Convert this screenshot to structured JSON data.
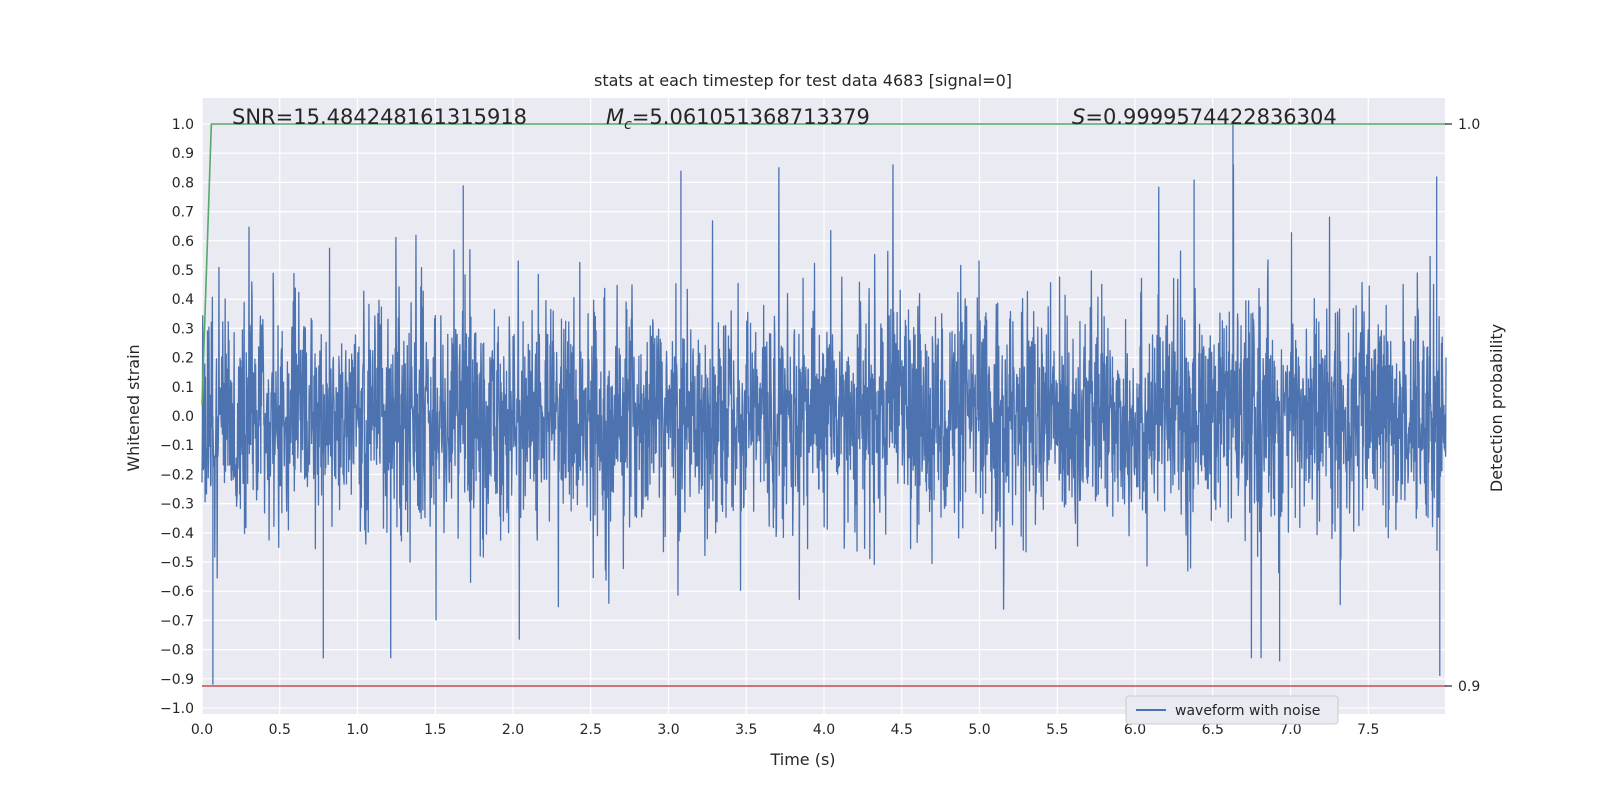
{
  "chart_data": {
    "type": "line",
    "title": "stats at each timestep for test data 4683 [signal=0]",
    "xlabel": "Time (s)",
    "ylabel": "Whitened strain",
    "y2label": "Detection probability",
    "xlim": [
      0.0,
      8.0
    ],
    "ylim": [
      -1.05,
      1.08
    ],
    "y2lim": [
      0.9,
      1.0
    ],
    "x_ticks": [
      "0.0",
      "0.5",
      "1.0",
      "1.5",
      "2.0",
      "2.5",
      "3.0",
      "3.5",
      "4.0",
      "4.5",
      "5.0",
      "5.5",
      "6.0",
      "6.5",
      "7.0",
      "7.5"
    ],
    "y_ticks": [
      "1.0",
      "0.9",
      "0.8",
      "0.7",
      "0.6",
      "0.5",
      "0.4",
      "0.3",
      "0.2",
      "0.1",
      "0.0",
      "−0.1",
      "−0.2",
      "−0.3",
      "−0.4",
      "−0.5",
      "−0.6",
      "−0.7",
      "−0.8",
      "−0.9",
      "−1.0"
    ],
    "y2_ticks": [
      "1.0",
      "0.9"
    ],
    "grid": true,
    "legend_position": "bottom-right",
    "annotations": {
      "snr": "SNR=15.484248161315918",
      "mc_symbol": "M",
      "mc_sub": "c",
      "mc_value": "=5.061051368713379",
      "s_symbol": "S",
      "s_value": "=0.9999574422836304"
    },
    "series": [
      {
        "name": "waveform with noise",
        "color": "#4c72b0",
        "pattern": "gaussian-noise",
        "x_range": [
          0.0,
          8.0
        ],
        "envelope": [
          -0.92,
          1.0
        ],
        "peaks": [
          {
            "x": 6.63,
            "y": 1.0
          },
          {
            "x": 3.08,
            "y": 0.84
          },
          {
            "x": 7.94,
            "y": 0.82
          },
          {
            "x": 1.68,
            "y": 0.79
          },
          {
            "x": 6.38,
            "y": 0.81
          },
          {
            "x": 0.07,
            "y": -0.92
          },
          {
            "x": 6.93,
            "y": -0.84
          },
          {
            "x": 7.96,
            "y": -0.89
          },
          {
            "x": 0.78,
            "y": -0.83
          }
        ]
      },
      {
        "color": "#55a868",
        "axis": "y2",
        "x": [
          0.0,
          0.06,
          8.0
        ],
        "values": [
          0.95,
          1.0,
          1.0
        ]
      },
      {
        "color": "#c44e52",
        "axis": "y2",
        "x": [
          0.0,
          8.0
        ],
        "values": [
          0.9,
          0.9
        ]
      }
    ]
  }
}
